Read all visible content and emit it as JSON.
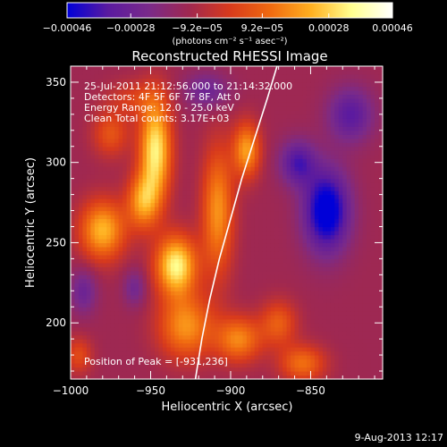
{
  "chart_data": {
    "type": "heatmap",
    "title": "Reconstructed RHESSI Image",
    "xlabel": "Heliocentric X (arcsec)",
    "ylabel": "Heliocentric Y (arcsec)",
    "xlim": [
      -1000,
      -805
    ],
    "ylim": [
      165,
      360
    ],
    "x_ticks": [
      -1000,
      -950,
      -900,
      -850
    ],
    "x_tick_labels": [
      "−1000",
      "−950",
      "−900",
      "−850"
    ],
    "y_ticks": [
      200,
      250,
      300,
      350
    ],
    "y_tick_labels": [
      "200",
      "250",
      "300",
      "350"
    ],
    "colorbar": {
      "ticks": [
        -0.00046,
        -0.00028,
        -9.2e-05,
        9.2e-05,
        0.00028,
        0.00046
      ],
      "tick_labels": [
        "−0.00046",
        "−0.00028",
        "−9.2e−05",
        "9.2e−05",
        "0.00028",
        "0.00046"
      ],
      "unit_label": "(photons cm⁻² s⁻¹ asec⁻²)",
      "range": [
        -0.00046,
        0.00046
      ],
      "colors": [
        "#0000d8",
        "#5a1aa0",
        "#7a2a8a",
        "#a02850",
        "#d83a1c",
        "#f06a10",
        "#ffb020",
        "#ffff90",
        "#ffffff"
      ]
    },
    "annotations": {
      "time": "25-Jul-2011 21:12:56.000 to 21:14:32.000",
      "detectors": "Detectors: 4F 5F 6F 7F 8F, Att 0",
      "energy": "Energy Range: 12.0 - 25.0 keV",
      "clean": "Clean    Total counts: 3.17E+03",
      "peak": "Position of Peak = [-931,236]"
    },
    "peak": {
      "x": -931,
      "y": 236
    },
    "limb_curve": {
      "note": "solar limb",
      "points": [
        [
          -922,
          165
        ],
        [
          -918,
          190
        ],
        [
          -913,
          215
        ],
        [
          -907,
          240
        ],
        [
          -900,
          265
        ],
        [
          -893,
          290
        ],
        [
          -885,
          315
        ],
        [
          -877,
          340
        ],
        [
          -871,
          360
        ]
      ]
    },
    "blobs": [
      {
        "x": -947,
        "y": 308,
        "amp": 0.00045,
        "sx": 7,
        "sy": 22
      },
      {
        "x": -934,
        "y": 236,
        "amp": 0.00046,
        "sx": 9,
        "sy": 13
      },
      {
        "x": -955,
        "y": 276,
        "amp": 0.0003,
        "sx": 7,
        "sy": 12
      },
      {
        "x": -980,
        "y": 258,
        "amp": 0.00036,
        "sx": 10,
        "sy": 13
      },
      {
        "x": -928,
        "y": 198,
        "amp": 0.0003,
        "sx": 12,
        "sy": 14
      },
      {
        "x": -908,
        "y": 270,
        "amp": 0.0003,
        "sx": 7,
        "sy": 28
      },
      {
        "x": -890,
        "y": 308,
        "amp": 0.00032,
        "sx": 6,
        "sy": 12
      },
      {
        "x": -975,
        "y": 318,
        "amp": 0.00018,
        "sx": 8,
        "sy": 10
      },
      {
        "x": -895,
        "y": 190,
        "amp": 0.00028,
        "sx": 10,
        "sy": 10
      },
      {
        "x": -870,
        "y": 200,
        "amp": 0.0002,
        "sx": 8,
        "sy": 10
      },
      {
        "x": -855,
        "y": 175,
        "amp": 0.00024,
        "sx": 10,
        "sy": 8
      },
      {
        "x": -995,
        "y": 180,
        "amp": 0.00016,
        "sx": 6,
        "sy": 8
      },
      {
        "x": -960,
        "y": 340,
        "amp": 0.00012,
        "sx": 12,
        "sy": 8
      },
      {
        "x": -840,
        "y": 270,
        "amp": -0.0004,
        "sx": 10,
        "sy": 18
      },
      {
        "x": -858,
        "y": 300,
        "amp": -0.00024,
        "sx": 8,
        "sy": 10
      },
      {
        "x": -825,
        "y": 330,
        "amp": -0.00022,
        "sx": 10,
        "sy": 12
      },
      {
        "x": -915,
        "y": 345,
        "amp": -0.00016,
        "sx": 10,
        "sy": 8
      },
      {
        "x": -992,
        "y": 220,
        "amp": -0.00016,
        "sx": 6,
        "sy": 10
      },
      {
        "x": -960,
        "y": 222,
        "amp": -0.00014,
        "sx": 5,
        "sy": 8
      }
    ]
  },
  "footer": {
    "timestamp": "9-Aug-2013 12:17"
  }
}
